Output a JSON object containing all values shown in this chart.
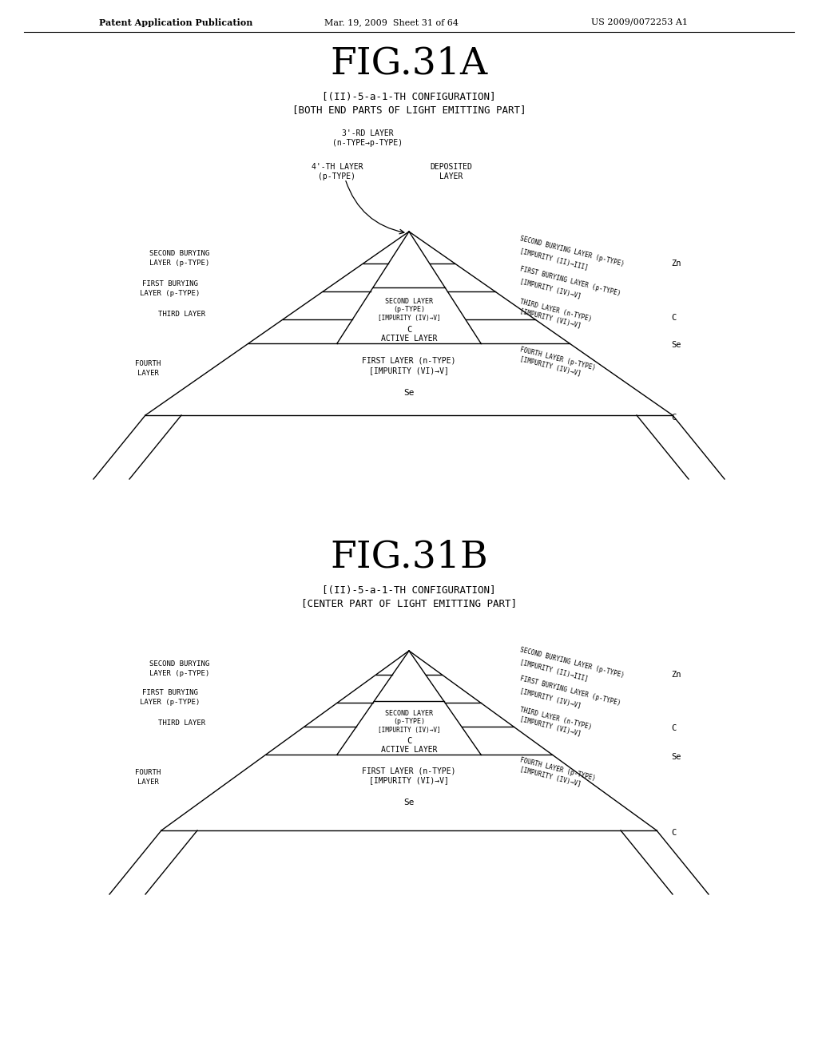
{
  "fig_title_A": "FIG.31A",
  "fig_title_B": "FIG.31B",
  "subtitle_A_line1": "[(II)-5-a-1-TH CONFIGURATION]",
  "subtitle_A_line2": "[BOTH END PARTS OF LIGHT EMITTING PART]",
  "subtitle_B_line1": "[(II)-5-a-1-TH CONFIGURATION]",
  "subtitle_B_line2": "[CENTER PART OF LIGHT EMITTING PART]",
  "header_left": "Patent Application Publication",
  "header_center": "Mar. 19, 2009  Sheet 31 of 64",
  "header_right": "US 2009/0072253 A1",
  "bg_color": "#ffffff",
  "line_color": "#000000"
}
